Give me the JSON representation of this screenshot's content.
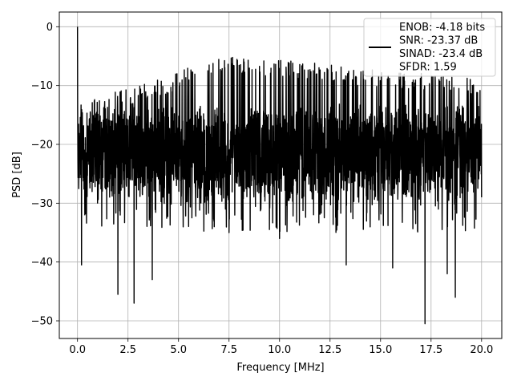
{
  "chart_data": {
    "type": "line",
    "title": "",
    "xlabel": "Frequency [MHz]",
    "ylabel": "PSD [dB]",
    "xlim": [
      -0.9,
      21.0
    ],
    "ylim": [
      -53.0,
      2.5
    ],
    "xticks": [
      0.0,
      2.5,
      5.0,
      7.5,
      10.0,
      12.5,
      15.0,
      17.5,
      20.0
    ],
    "xtick_labels": [
      "0.0",
      "2.5",
      "5.0",
      "7.5",
      "10.0",
      "12.5",
      "15.0",
      "17.5",
      "20.0"
    ],
    "yticks": [
      0,
      -10,
      -20,
      -30,
      -40,
      -50
    ],
    "ytick_labels": [
      "0",
      "−10",
      "−20",
      "−30",
      "−40",
      "−50"
    ],
    "grid": true,
    "legend_position": "top-right",
    "series": [
      {
        "name": "ENOB: -4.18 bits\nSNR: -23.37 dB\nSINAD: -23.4 dB\nSFDR: 1.59",
        "color": "#000000",
        "x_range": [
          0.0,
          20.0
        ],
        "envelope_top": [
          [
            0.0,
            0.0
          ],
          [
            0.1,
            -12.5
          ],
          [
            1.0,
            -12.0
          ],
          [
            2.5,
            -10.5
          ],
          [
            4.5,
            -8.5
          ],
          [
            6.0,
            -5.5
          ],
          [
            7.5,
            -5.0
          ],
          [
            10.0,
            -5.5
          ],
          [
            12.5,
            -6.5
          ],
          [
            15.0,
            -7.5
          ],
          [
            17.5,
            -8.0
          ],
          [
            20.0,
            -9.0
          ]
        ],
        "envelope_bottom": [
          [
            0.0,
            -31.0
          ],
          [
            0.2,
            -40.5
          ],
          [
            2.0,
            -45.5
          ],
          [
            2.8,
            -47.0
          ],
          [
            3.7,
            -43.0
          ],
          [
            7.5,
            -35.0
          ],
          [
            10.0,
            -36.0
          ],
          [
            13.3,
            -40.5
          ],
          [
            15.6,
            -41.0
          ],
          [
            17.2,
            -50.5
          ],
          [
            18.3,
            -42.0
          ],
          [
            18.7,
            -46.0
          ],
          [
            20.0,
            -29.0
          ]
        ],
        "band_upper": -15.0,
        "band_lower": -28.0
      }
    ]
  }
}
